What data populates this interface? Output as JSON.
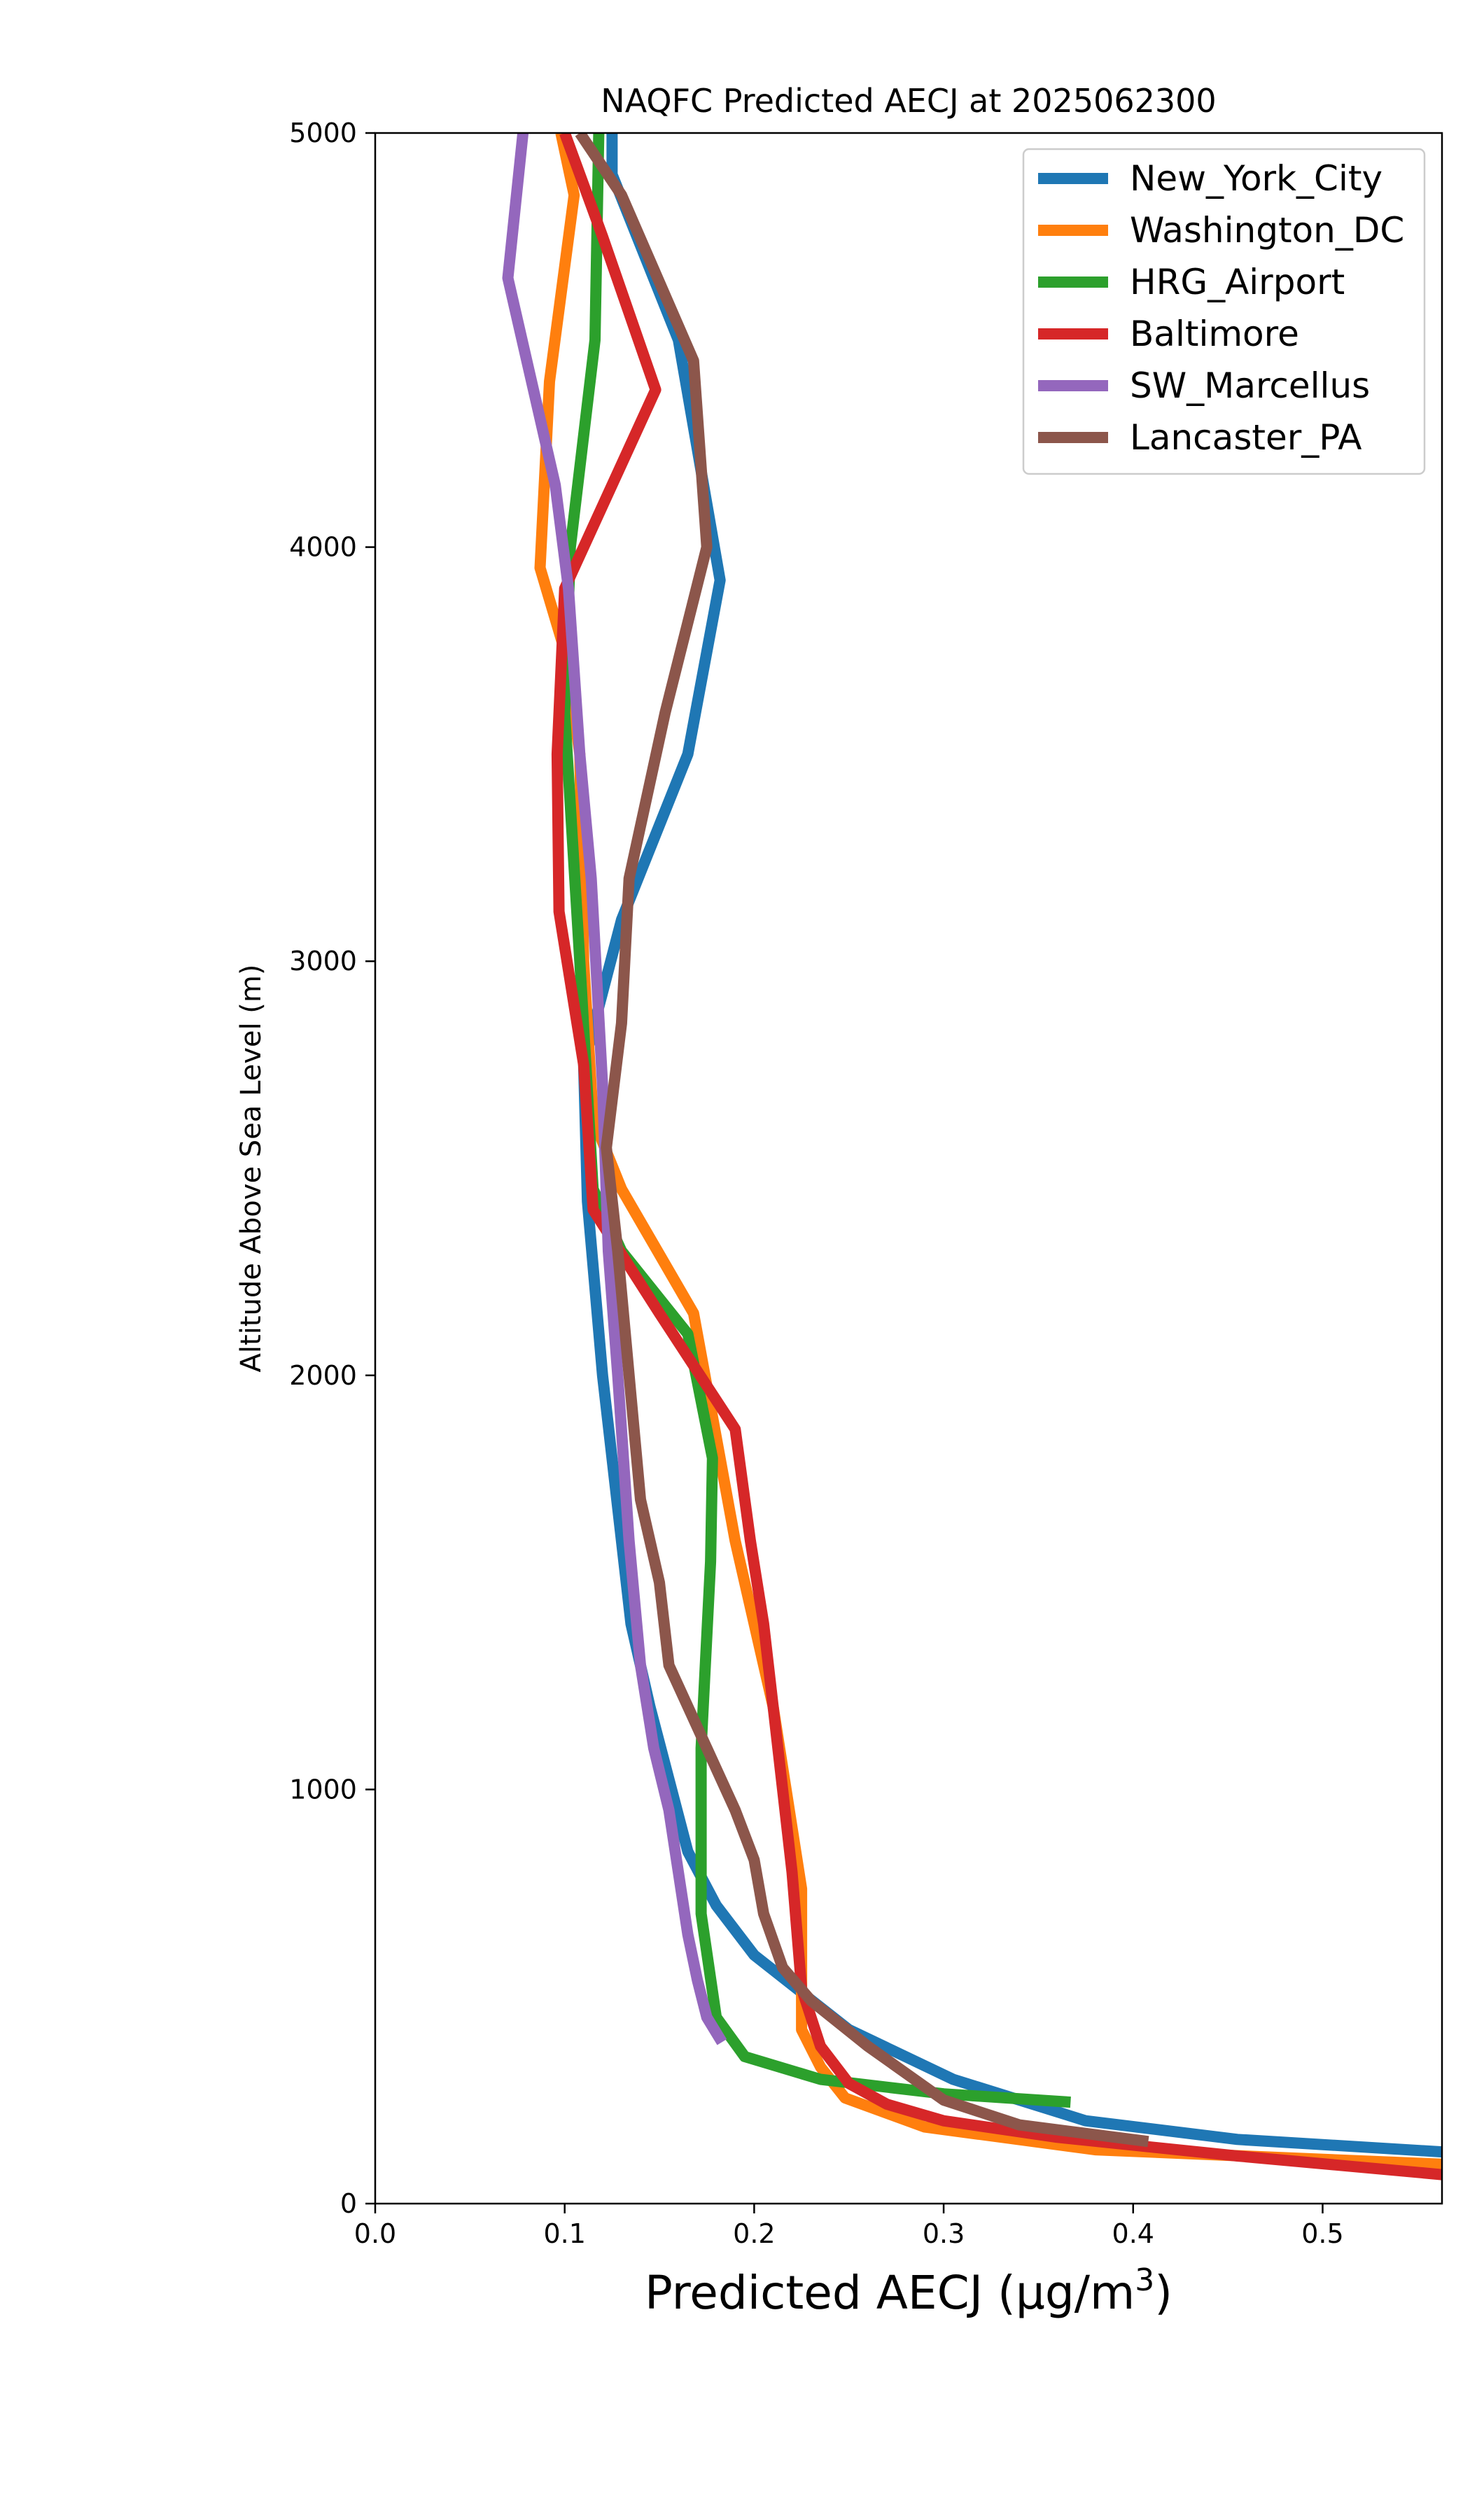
{
  "chart_data": {
    "type": "line",
    "title": "NAQFC Predicted AECJ at 2025062300",
    "xlabel": "Predicted AECJ (",
    "xlabel_unit": "μg/m",
    "xlabel_sup": "3",
    "xlabel_close": ")",
    "ylabel": "Altitude Above Sea Level (m)",
    "xlim": [
      0.0,
      0.563
    ],
    "ylim": [
      0,
      5000
    ],
    "xticks": [
      0.0,
      0.1,
      0.2,
      0.3,
      0.4,
      0.5
    ],
    "xtick_labels": [
      "0.0",
      "0.1",
      "0.2",
      "0.3",
      "0.4",
      "0.5"
    ],
    "yticks": [
      0,
      1000,
      2000,
      3000,
      4000,
      5000
    ],
    "ytick_labels": [
      "0",
      "1000",
      "2000",
      "3000",
      "4000",
      "5000"
    ],
    "grid": false,
    "legend_position": "top-right",
    "series": [
      {
        "name": "New_York_City",
        "color": "#1f77b4",
        "points": [
          [
            0.563,
            125
          ],
          [
            0.455,
            155
          ],
          [
            0.375,
            200
          ],
          [
            0.305,
            300
          ],
          [
            0.25,
            420
          ],
          [
            0.2,
            600
          ],
          [
            0.18,
            720
          ],
          [
            0.165,
            850
          ],
          [
            0.145,
            1200
          ],
          [
            0.135,
            1400
          ],
          [
            0.12,
            2000
          ],
          [
            0.112,
            2420
          ],
          [
            0.11,
            2750
          ],
          [
            0.13,
            3100
          ],
          [
            0.165,
            3500
          ],
          [
            0.182,
            3920
          ],
          [
            0.16,
            4500
          ],
          [
            0.125,
            4900
          ],
          [
            0.125,
            5000
          ]
        ]
      },
      {
        "name": "Washington_DC",
        "color": "#ff7f0e",
        "points": [
          [
            0.563,
            95
          ],
          [
            0.38,
            130
          ],
          [
            0.29,
            185
          ],
          [
            0.248,
            255
          ],
          [
            0.235,
            330
          ],
          [
            0.225,
            420
          ],
          [
            0.225,
            560
          ],
          [
            0.225,
            760
          ],
          [
            0.21,
            1200
          ],
          [
            0.19,
            1600
          ],
          [
            0.168,
            2150
          ],
          [
            0.13,
            2450
          ],
          [
            0.115,
            2620
          ],
          [
            0.11,
            3000
          ],
          [
            0.108,
            3500
          ],
          [
            0.1,
            3750
          ],
          [
            0.087,
            3950
          ],
          [
            0.092,
            4400
          ],
          [
            0.105,
            4850
          ],
          [
            0.098,
            5000
          ]
        ]
      },
      {
        "name": "HRG_Airport",
        "color": "#2ca02c",
        "points": [
          [
            0.367,
            245
          ],
          [
            0.3,
            265
          ],
          [
            0.235,
            300
          ],
          [
            0.195,
            355
          ],
          [
            0.18,
            450
          ],
          [
            0.172,
            700
          ],
          [
            0.172,
            1100
          ],
          [
            0.177,
            1550
          ],
          [
            0.178,
            1800
          ],
          [
            0.165,
            2100
          ],
          [
            0.13,
            2300
          ],
          [
            0.115,
            2450
          ],
          [
            0.108,
            3000
          ],
          [
            0.1,
            3600
          ],
          [
            0.103,
            4000
          ],
          [
            0.116,
            4500
          ],
          [
            0.118,
            5000
          ]
        ]
      },
      {
        "name": "Baltimore",
        "color": "#d62728",
        "points": [
          [
            0.563,
            70
          ],
          [
            0.455,
            115
          ],
          [
            0.36,
            160
          ],
          [
            0.3,
            200
          ],
          [
            0.27,
            240
          ],
          [
            0.25,
            290
          ],
          [
            0.235,
            380
          ],
          [
            0.225,
            520
          ],
          [
            0.22,
            800
          ],
          [
            0.21,
            1200
          ],
          [
            0.205,
            1400
          ],
          [
            0.198,
            1600
          ],
          [
            0.19,
            1870
          ],
          [
            0.15,
            2150
          ],
          [
            0.115,
            2400
          ],
          [
            0.11,
            2750
          ],
          [
            0.097,
            3120
          ],
          [
            0.096,
            3500
          ],
          [
            0.1,
            3900
          ],
          [
            0.148,
            4380
          ],
          [
            0.12,
            4750
          ],
          [
            0.1,
            5000
          ]
        ]
      },
      {
        "name": "SW_Marcellus",
        "color": "#9467bd",
        "points": [
          [
            0.183,
            390
          ],
          [
            0.175,
            450
          ],
          [
            0.17,
            540
          ],
          [
            0.165,
            650
          ],
          [
            0.16,
            800
          ],
          [
            0.155,
            950
          ],
          [
            0.147,
            1100
          ],
          [
            0.14,
            1300
          ],
          [
            0.134,
            1600
          ],
          [
            0.128,
            2000
          ],
          [
            0.123,
            2300
          ],
          [
            0.12,
            2700
          ],
          [
            0.114,
            3200
          ],
          [
            0.108,
            3500
          ],
          [
            0.102,
            3900
          ],
          [
            0.095,
            4150
          ],
          [
            0.07,
            4650
          ],
          [
            0.078,
            5000
          ]
        ]
      },
      {
        "name": "Lancaster_PA",
        "color": "#8c564b",
        "points": [
          [
            0.408,
            150
          ],
          [
            0.34,
            190
          ],
          [
            0.3,
            250
          ],
          [
            0.26,
            380
          ],
          [
            0.23,
            490
          ],
          [
            0.215,
            570
          ],
          [
            0.205,
            700
          ],
          [
            0.2,
            830
          ],
          [
            0.19,
            950
          ],
          [
            0.17,
            1150
          ],
          [
            0.155,
            1300
          ],
          [
            0.15,
            1500
          ],
          [
            0.14,
            1700
          ],
          [
            0.135,
            1950
          ],
          [
            0.128,
            2300
          ],
          [
            0.122,
            2550
          ],
          [
            0.13,
            2850
          ],
          [
            0.134,
            3200
          ],
          [
            0.153,
            3600
          ],
          [
            0.175,
            4000
          ],
          [
            0.168,
            4450
          ],
          [
            0.13,
            4850
          ],
          [
            0.108,
            5000
          ]
        ]
      }
    ]
  }
}
